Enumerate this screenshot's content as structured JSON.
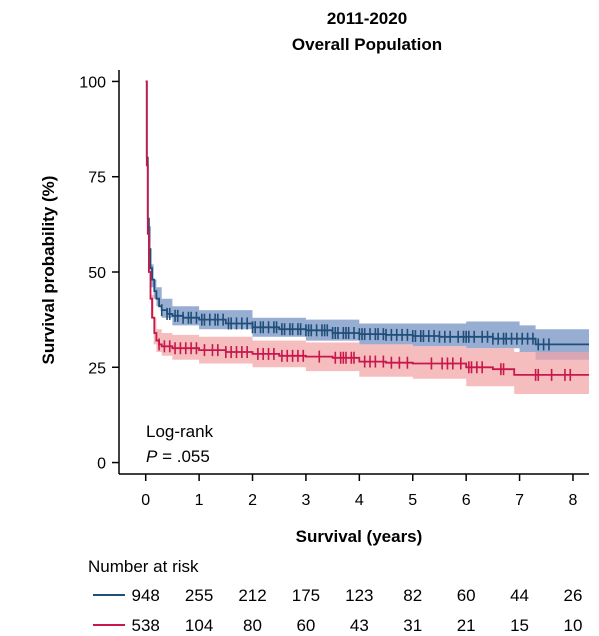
{
  "chart_data": {
    "type": "line",
    "subtype": "kaplan-meier",
    "title": [
      "2011-2020",
      "Overall Population"
    ],
    "xlabel": "Survival (years)",
    "ylabel": "Survival probability (%)",
    "xlim": [
      -0.5,
      8.3
    ],
    "ylim": [
      -3,
      103
    ],
    "xticks": [
      0,
      1,
      2,
      3,
      4,
      5,
      6,
      7,
      8
    ],
    "yticks": [
      0,
      25,
      50,
      75,
      100
    ],
    "grid": false,
    "annotation": {
      "line1": "Log-rank",
      "p_label": "P",
      "p_value": " = .055"
    },
    "series": [
      {
        "color": "#1f4e79",
        "ci_color": "#6f8fc0",
        "points": [
          [
            0,
            100
          ],
          [
            0.02,
            80
          ],
          [
            0.04,
            64
          ],
          [
            0.06,
            56
          ],
          [
            0.09,
            51
          ],
          [
            0.12,
            48
          ],
          [
            0.16,
            45
          ],
          [
            0.2,
            43
          ],
          [
            0.25,
            41
          ],
          [
            0.3,
            40
          ],
          [
            0.4,
            39
          ],
          [
            0.5,
            38.5
          ],
          [
            0.7,
            38
          ],
          [
            1,
            37.5
          ],
          [
            1.5,
            36.5
          ],
          [
            2,
            35.5
          ],
          [
            2.5,
            35
          ],
          [
            3,
            34.7
          ],
          [
            3.5,
            34
          ],
          [
            4,
            33.7
          ],
          [
            4.5,
            33.5
          ],
          [
            5,
            33.2
          ],
          [
            5.5,
            33
          ],
          [
            6,
            33
          ],
          [
            6.5,
            32.5
          ],
          [
            7,
            32.5
          ],
          [
            7.3,
            31
          ],
          [
            8.3,
            31
          ]
        ],
        "ci_upper": [
          [
            0,
            100
          ],
          [
            0.05,
            62
          ],
          [
            0.1,
            52
          ],
          [
            0.15,
            48
          ],
          [
            0.2,
            46
          ],
          [
            0.3,
            43
          ],
          [
            0.5,
            41
          ],
          [
            1,
            40
          ],
          [
            2,
            38
          ],
          [
            3,
            37.5
          ],
          [
            4,
            36.5
          ],
          [
            5,
            36.5
          ],
          [
            6,
            37
          ],
          [
            7,
            36
          ],
          [
            7.3,
            35
          ],
          [
            8.3,
            35
          ]
        ],
        "ci_lower": [
          [
            0,
            100
          ],
          [
            0.05,
            54
          ],
          [
            0.1,
            46
          ],
          [
            0.15,
            43
          ],
          [
            0.2,
            41
          ],
          [
            0.3,
            38
          ],
          [
            0.5,
            36
          ],
          [
            1,
            35
          ],
          [
            2,
            33
          ],
          [
            3,
            32
          ],
          [
            4,
            31
          ],
          [
            5,
            30.5
          ],
          [
            6,
            30
          ],
          [
            7,
            29
          ],
          [
            7.3,
            27
          ],
          [
            8.3,
            27
          ]
        ],
        "censor_marks": [
          0.3,
          0.4,
          0.45,
          0.55,
          0.6,
          0.7,
          0.8,
          0.85,
          0.95,
          1.05,
          1.1,
          1.2,
          1.3,
          1.35,
          1.45,
          1.55,
          1.6,
          1.7,
          1.8,
          1.9,
          2.0,
          2.05,
          2.15,
          2.2,
          2.3,
          2.4,
          2.45,
          2.55,
          2.6,
          2.7,
          2.75,
          2.85,
          2.9,
          3.0,
          3.05,
          3.1,
          3.2,
          3.3,
          3.35,
          3.4,
          3.5,
          3.55,
          3.6,
          3.7,
          3.75,
          3.8,
          3.9,
          4.0,
          4.05,
          4.1,
          4.2,
          4.3,
          4.35,
          4.45,
          4.5,
          4.6,
          4.7,
          4.8,
          4.9,
          5.0,
          5.05,
          5.15,
          5.2,
          5.3,
          5.4,
          5.5,
          5.6,
          5.7,
          5.85,
          5.95,
          6.0,
          6.05,
          6.15,
          6.3,
          6.4,
          6.5,
          6.6,
          6.7,
          6.75,
          6.85,
          6.95,
          7.05,
          7.15,
          7.25,
          7.35,
          7.45,
          7.55
        ]
      },
      {
        "color": "#c8174a",
        "ci_color": "#f2a3a6",
        "points": [
          [
            0,
            100
          ],
          [
            0.02,
            78
          ],
          [
            0.04,
            60
          ],
          [
            0.06,
            50
          ],
          [
            0.09,
            43
          ],
          [
            0.12,
            38
          ],
          [
            0.16,
            34
          ],
          [
            0.2,
            32
          ],
          [
            0.25,
            31
          ],
          [
            0.3,
            30.5
          ],
          [
            0.5,
            30
          ],
          [
            1,
            29.5
          ],
          [
            1.5,
            29
          ],
          [
            2,
            28.5
          ],
          [
            2.5,
            28
          ],
          [
            3,
            27.8
          ],
          [
            3.5,
            27.5
          ],
          [
            4,
            26.5
          ],
          [
            4.5,
            26.2
          ],
          [
            5,
            26
          ],
          [
            5.5,
            26
          ],
          [
            6,
            25
          ],
          [
            6.5,
            24.5
          ],
          [
            6.9,
            23
          ],
          [
            8.3,
            23
          ]
        ],
        "ci_upper": [
          [
            0,
            100
          ],
          [
            0.05,
            58
          ],
          [
            0.1,
            44
          ],
          [
            0.15,
            38
          ],
          [
            0.2,
            35
          ],
          [
            0.3,
            34
          ],
          [
            0.5,
            33.5
          ],
          [
            1,
            33
          ],
          [
            2,
            32
          ],
          [
            3,
            31.5
          ],
          [
            4,
            31
          ],
          [
            5,
            30.5
          ],
          [
            6,
            30
          ],
          [
            6.9,
            29
          ],
          [
            8.3,
            29
          ]
        ],
        "ci_lower": [
          [
            0,
            100
          ],
          [
            0.05,
            50
          ],
          [
            0.1,
            38
          ],
          [
            0.15,
            31
          ],
          [
            0.2,
            29
          ],
          [
            0.3,
            28
          ],
          [
            0.5,
            27
          ],
          [
            1,
            26
          ],
          [
            2,
            25
          ],
          [
            3,
            24
          ],
          [
            4,
            22.5
          ],
          [
            5,
            22
          ],
          [
            6,
            20
          ],
          [
            6.9,
            18
          ],
          [
            8.3,
            18
          ]
        ],
        "censor_marks": [
          0.25,
          0.35,
          0.45,
          0.55,
          0.65,
          0.75,
          0.85,
          0.95,
          1.1,
          1.25,
          1.35,
          1.5,
          1.6,
          1.7,
          1.8,
          1.9,
          2.1,
          2.2,
          2.3,
          2.4,
          2.55,
          2.65,
          2.75,
          2.85,
          2.95,
          3.25,
          3.55,
          3.65,
          3.7,
          3.75,
          3.85,
          3.9,
          4.1,
          4.2,
          4.3,
          4.45,
          4.6,
          4.75,
          4.9,
          5.35,
          5.55,
          5.65,
          5.75,
          5.9,
          6.05,
          6.1,
          6.2,
          6.3,
          6.65,
          6.7,
          7.3,
          7.35,
          7.6,
          7.85,
          7.95
        ]
      }
    ],
    "risk_table": {
      "title": "Number at risk",
      "rows": [
        {
          "color": "#1f4e79",
          "values": [
            "948",
            "255",
            "212",
            "175",
            "123",
            "82",
            "60",
            "44",
            "26"
          ]
        },
        {
          "color": "#c8174a",
          "values": [
            "538",
            "104",
            "80",
            "60",
            "43",
            "31",
            "21",
            "15",
            "10"
          ]
        }
      ]
    }
  }
}
